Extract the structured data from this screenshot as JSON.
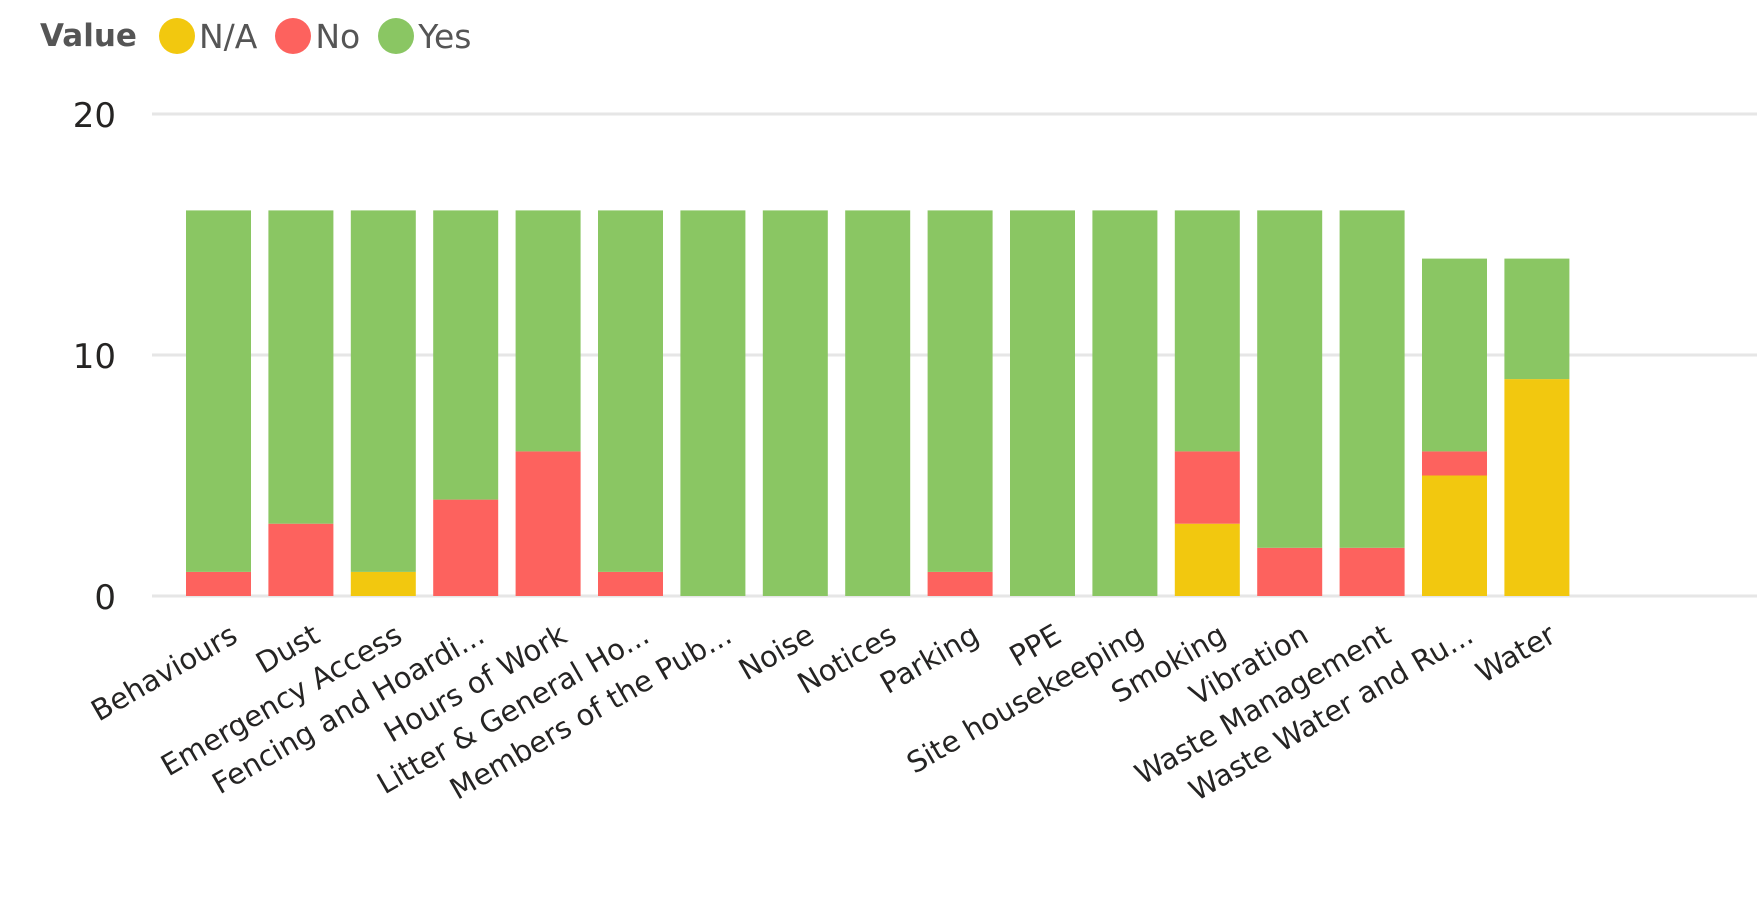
{
  "legend": {
    "title": "Value",
    "items": [
      {
        "label": "N/A",
        "color": "#F2C80F"
      },
      {
        "label": "No",
        "color": "#FD625E"
      },
      {
        "label": "Yes",
        "color": "#8AC663"
      }
    ]
  },
  "chart_data": {
    "type": "bar",
    "stacked": true,
    "title": "",
    "xlabel": "",
    "ylabel": "",
    "ylim": [
      0,
      20
    ],
    "yticks": [
      0,
      10,
      20
    ],
    "grid": true,
    "legend_position": "top-left",
    "categories": [
      "Behaviours",
      "Dust",
      "Emergency Access",
      "Fencing and Hoardi...",
      "Hours of Work",
      "Litter & General Ho...",
      "Members of the Pub...",
      "Noise",
      "Notices",
      "Parking",
      "PPE",
      "Site housekeeping",
      "Smoking",
      "Vibration",
      "Waste Management",
      "Waste Water and Ru...",
      "Water"
    ],
    "series": [
      {
        "name": "N/A",
        "color": "#F2C80F",
        "values": [
          0,
          0,
          1,
          0,
          0,
          0,
          0,
          0,
          0,
          0,
          0,
          0,
          3,
          0,
          0,
          5,
          9
        ]
      },
      {
        "name": "No",
        "color": "#FD625E",
        "values": [
          1,
          3,
          0,
          4,
          6,
          1,
          0,
          0,
          0,
          1,
          0,
          0,
          3,
          2,
          2,
          1,
          0
        ]
      },
      {
        "name": "Yes",
        "color": "#8AC663",
        "values": [
          15,
          13,
          15,
          12,
          10,
          15,
          16,
          16,
          16,
          15,
          16,
          16,
          10,
          14,
          14,
          8,
          5
        ]
      }
    ]
  }
}
